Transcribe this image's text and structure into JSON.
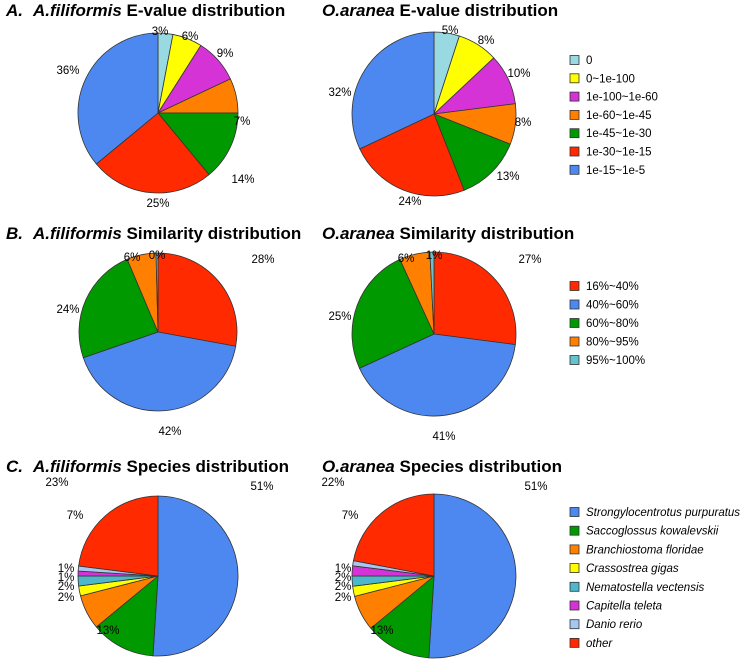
{
  "colors": {
    "e_value": [
      "#99d9e1",
      "#ffff00",
      "#d633d6",
      "#ff8000",
      "#009900",
      "#ff2a00",
      "#4d88f0"
    ],
    "similarity": [
      "#ff2a00",
      "#4d88f0",
      "#009900",
      "#ff8000",
      "#66c2cc"
    ],
    "species": [
      "#4d88f0",
      "#009900",
      "#ff8000",
      "#ffff00",
      "#4db8cc",
      "#d633d6",
      "#a6c8f0",
      "#ff2a00"
    ]
  },
  "chart_data": [
    {
      "type": "pie",
      "panel": "A.",
      "species_name": "A.filiformis",
      "title_rest": " E-value distribution",
      "slice_labels": [
        "3%",
        "6%",
        "9%",
        "7%",
        "14%",
        "25%",
        "36%"
      ],
      "values": [
        3,
        6,
        9,
        7,
        14,
        25,
        36
      ],
      "color_set": "e_value"
    },
    {
      "type": "pie",
      "panel": "",
      "species_name": "O.aranea",
      "title_rest": " E-value distribution",
      "slice_labels": [
        "5%",
        "8%",
        "10%",
        "8%",
        "13%",
        "24%",
        "32%"
      ],
      "values": [
        5,
        8,
        10,
        8,
        13,
        24,
        32
      ],
      "color_set": "e_value"
    },
    {
      "type": "pie",
      "panel": "B.",
      "species_name": "A.filiformis",
      "title_rest": " Similarity distribution",
      "slice_labels": [
        "28%",
        "42%",
        "24%",
        "6%",
        "0%"
      ],
      "values": [
        28,
        42,
        24,
        6,
        0.4
      ],
      "color_set": "similarity"
    },
    {
      "type": "pie",
      "panel": "",
      "species_name": "O.aranea",
      "title_rest": " Similarity distribution",
      "slice_labels": [
        "27%",
        "41%",
        "25%",
        "6%",
        "1%"
      ],
      "values": [
        27,
        41,
        25,
        6,
        0.8
      ],
      "color_set": "similarity"
    },
    {
      "type": "pie",
      "panel": "C.",
      "species_name": "A.filiformis",
      "title_rest": " Species distribution",
      "slice_labels": [
        "51%",
        "13%",
        "7%",
        "2%",
        "2%",
        "1%",
        "1%",
        "23%"
      ],
      "values": [
        51,
        13,
        7,
        2,
        2,
        1,
        1,
        23
      ],
      "color_set": "species"
    },
    {
      "type": "pie",
      "panel": "",
      "species_name": "O.aranea",
      "title_rest": " Species distribution",
      "slice_labels": [
        "51%",
        "13%",
        "7%",
        "2%",
        "2%",
        "2%",
        "1%",
        "22%"
      ],
      "values": [
        51,
        13,
        7,
        2,
        2,
        2,
        1,
        22
      ],
      "color_set": "species"
    }
  ],
  "legends": [
    {
      "color_set": "e_value",
      "italic": false,
      "entries": [
        "0",
        "0~1e-100",
        "1e-100~1e-60",
        "1e-60~1e-45",
        "1e-45~1e-30",
        "1e-30~1e-15",
        "1e-15~1e-5"
      ]
    },
    {
      "color_set": "similarity",
      "italic": false,
      "entries": [
        "16%~40%",
        "40%~60%",
        "60%~80%",
        "80%~95%",
        "95%~100%"
      ]
    },
    {
      "color_set": "species",
      "italic": true,
      "entries": [
        "Strongylocentrotus purpuratus",
        "Saccoglossus kowalevskii",
        "Branchiostoma floridae",
        "Crassostrea gigas",
        "Nematostella vectensis",
        "Capitella teleta",
        "Danio rerio",
        "other"
      ]
    }
  ]
}
